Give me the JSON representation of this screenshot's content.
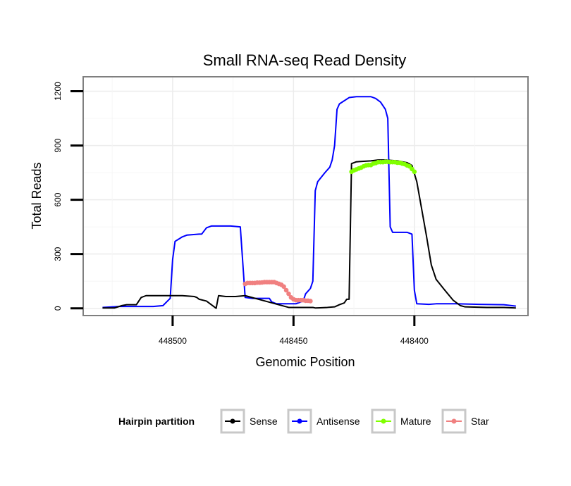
{
  "chart_data": {
    "type": "line",
    "title": "Small RNA-seq Read Density",
    "xlabel": "Genomic Position",
    "ylabel": "Total Reads",
    "x_reversed": true,
    "xlim": [
      448537,
      448353
    ],
    "ylim": [
      -40,
      1280
    ],
    "x_ticks": [
      448500,
      448450,
      448400
    ],
    "x_tick_labels": [
      "448500",
      "448450",
      "448400"
    ],
    "y_ticks": [
      0,
      300,
      600,
      900,
      1200
    ],
    "y_tick_labels": [
      "0",
      "300",
      "600",
      "900",
      "1200"
    ],
    "grid": true,
    "legend": {
      "title": "Hairpin partition",
      "position": "bottom",
      "entries": [
        "Sense",
        "Antisense",
        "Mature",
        "Star"
      ]
    },
    "series": [
      {
        "name": "Antisense",
        "color": "#0000ff",
        "points": [
          [
            448529,
            5
          ],
          [
            448522,
            10
          ],
          [
            448515,
            10
          ],
          [
            448508,
            10
          ],
          [
            448504,
            15
          ],
          [
            448501,
            55
          ],
          [
            448500,
            270
          ],
          [
            448499,
            370
          ],
          [
            448496,
            395
          ],
          [
            448494,
            405
          ],
          [
            448489,
            410
          ],
          [
            448488,
            410
          ],
          [
            448486,
            445
          ],
          [
            448484,
            455
          ],
          [
            448480,
            455
          ],
          [
            448476,
            455
          ],
          [
            448472,
            450
          ],
          [
            448470,
            60
          ],
          [
            448467,
            55
          ],
          [
            448460,
            55
          ],
          [
            448459,
            35
          ],
          [
            448457,
            25
          ],
          [
            448449,
            25
          ],
          [
            448446,
            40
          ],
          [
            448445,
            80
          ],
          [
            448443,
            110
          ],
          [
            448442,
            150
          ],
          [
            448441,
            650
          ],
          [
            448440,
            700
          ],
          [
            448437,
            750
          ],
          [
            448435,
            780
          ],
          [
            448434,
            820
          ],
          [
            448433,
            900
          ],
          [
            448432,
            1100
          ],
          [
            448431,
            1130
          ],
          [
            448427,
            1165
          ],
          [
            448424,
            1170
          ],
          [
            448418,
            1170
          ],
          [
            448416,
            1160
          ],
          [
            448414,
            1140
          ],
          [
            448412,
            1100
          ],
          [
            448411,
            1050
          ],
          [
            448410,
            450
          ],
          [
            448409,
            420
          ],
          [
            448403,
            420
          ],
          [
            448401,
            410
          ],
          [
            448400,
            100
          ],
          [
            448399,
            25
          ],
          [
            448394,
            22
          ],
          [
            448391,
            25
          ],
          [
            448387,
            25
          ],
          [
            448383,
            25
          ],
          [
            448373,
            22
          ],
          [
            448363,
            20
          ],
          [
            448358,
            12
          ]
        ]
      },
      {
        "name": "Sense",
        "color": "#000000",
        "points": [
          [
            448529,
            2
          ],
          [
            448524,
            2
          ],
          [
            448521,
            15
          ],
          [
            448519,
            20
          ],
          [
            448515,
            20
          ],
          [
            448513,
            60
          ],
          [
            448511,
            70
          ],
          [
            448506,
            70
          ],
          [
            448496,
            70
          ],
          [
            448491,
            65
          ],
          [
            448490,
            60
          ],
          [
            448489,
            50
          ],
          [
            448486,
            40
          ],
          [
            448484,
            20
          ],
          [
            448482,
            0
          ],
          [
            448481,
            70
          ],
          [
            448478,
            65
          ],
          [
            448474,
            65
          ],
          [
            448470,
            70
          ],
          [
            448452,
            5
          ],
          [
            448447,
            5
          ],
          [
            448442,
            5
          ],
          [
            448441,
            2
          ],
          [
            448439,
            3
          ],
          [
            448436,
            5
          ],
          [
            448433,
            8
          ],
          [
            448431,
            20
          ],
          [
            448429,
            30
          ],
          [
            448428,
            50
          ],
          [
            448427,
            50
          ],
          [
            448426,
            800
          ],
          [
            448424,
            810
          ],
          [
            448418,
            815
          ],
          [
            448415,
            820
          ],
          [
            448412,
            820
          ],
          [
            448407,
            815
          ],
          [
            448405,
            810
          ],
          [
            448403,
            805
          ],
          [
            448401,
            790
          ],
          [
            448399,
            700
          ],
          [
            448395,
            400
          ],
          [
            448393,
            240
          ],
          [
            448391,
            160
          ],
          [
            448388,
            110
          ],
          [
            448384,
            45
          ],
          [
            448381,
            15
          ],
          [
            448379,
            8
          ],
          [
            448370,
            5
          ],
          [
            448363,
            5
          ],
          [
            448358,
            2
          ]
        ]
      },
      {
        "name": "Mature",
        "color": "#80ff00",
        "points": [
          [
            448426,
            755
          ],
          [
            448425,
            763
          ],
          [
            448424,
            768
          ],
          [
            448423,
            773
          ],
          [
            448422,
            778
          ],
          [
            448421,
            785
          ],
          [
            448420,
            790
          ],
          [
            448419,
            792
          ],
          [
            448418,
            792
          ],
          [
            448417,
            800
          ],
          [
            448416,
            803
          ],
          [
            448415,
            808
          ],
          [
            448414,
            808
          ],
          [
            448413,
            808
          ],
          [
            448412,
            810
          ],
          [
            448411,
            810
          ],
          [
            448410,
            808
          ],
          [
            448409,
            808
          ],
          [
            448408,
            808
          ],
          [
            448407,
            805
          ],
          [
            448406,
            805
          ],
          [
            448405,
            800
          ],
          [
            448404,
            797
          ],
          [
            448403,
            790
          ],
          [
            448402,
            785
          ],
          [
            448401,
            770
          ],
          [
            448400,
            755
          ]
        ]
      },
      {
        "name": "Star",
        "color": "#f08080",
        "points": [
          [
            448470,
            135
          ],
          [
            448469,
            140
          ],
          [
            448468,
            140
          ],
          [
            448467,
            140
          ],
          [
            448466,
            140
          ],
          [
            448465,
            142
          ],
          [
            448464,
            142
          ],
          [
            448463,
            143
          ],
          [
            448462,
            145
          ],
          [
            448461,
            145
          ],
          [
            448460,
            145
          ],
          [
            448459,
            145
          ],
          [
            448458,
            145
          ],
          [
            448457,
            140
          ],
          [
            448456,
            135
          ],
          [
            448455,
            130
          ],
          [
            448454,
            120
          ],
          [
            448453,
            100
          ],
          [
            448452,
            80
          ],
          [
            448451,
            60
          ],
          [
            448450,
            50
          ],
          [
            448449,
            45
          ],
          [
            448448,
            45
          ],
          [
            448447,
            45
          ],
          [
            448446,
            45
          ],
          [
            448445,
            42
          ],
          [
            448444,
            42
          ],
          [
            448443,
            40
          ]
        ]
      }
    ]
  }
}
